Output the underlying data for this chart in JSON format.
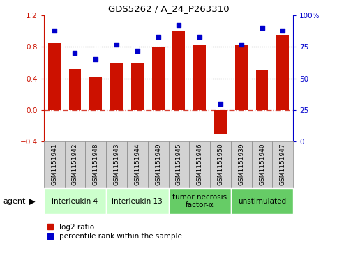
{
  "title": "GDS5262 / A_24_P263310",
  "samples": [
    "GSM1151941",
    "GSM1151942",
    "GSM1151948",
    "GSM1151943",
    "GSM1151944",
    "GSM1151949",
    "GSM1151945",
    "GSM1151946",
    "GSM1151950",
    "GSM1151939",
    "GSM1151940",
    "GSM1151947"
  ],
  "log2_ratio": [
    0.85,
    0.52,
    0.42,
    0.6,
    0.6,
    0.8,
    1.0,
    0.82,
    -0.3,
    0.82,
    0.5,
    0.95
  ],
  "percentile": [
    88,
    70,
    65,
    77,
    72,
    83,
    92,
    83,
    30,
    77,
    90,
    88
  ],
  "agents": [
    {
      "label": "interleukin 4",
      "start": 0,
      "end": 3,
      "color": "#ccffcc"
    },
    {
      "label": "interleukin 13",
      "start": 3,
      "end": 6,
      "color": "#ccffcc"
    },
    {
      "label": "tumor necrosis\nfactor-α",
      "start": 6,
      "end": 9,
      "color": "#66cc66"
    },
    {
      "label": "unstimulated",
      "start": 9,
      "end": 12,
      "color": "#66cc66"
    }
  ],
  "bar_color": "#cc1100",
  "dot_color": "#0000cc",
  "ylim_left": [
    -0.4,
    1.2
  ],
  "ylim_right": [
    0,
    100
  ],
  "yticks_left": [
    -0.4,
    0.0,
    0.4,
    0.8,
    1.2
  ],
  "yticks_right": [
    0,
    25,
    50,
    75,
    100
  ],
  "ytick_labels_right": [
    "0",
    "25",
    "50",
    "75",
    "100%"
  ],
  "hlines": [
    0.8,
    0.4
  ],
  "zero_line": 0.0,
  "bar_width": 0.6,
  "background_color": "#ffffff",
  "plot_bg": "#ffffff",
  "legend_log2": "log2 ratio",
  "legend_pct": "percentile rank within the sample",
  "tick_box_color": "#d3d3d3",
  "tick_box_ec": "#888888"
}
